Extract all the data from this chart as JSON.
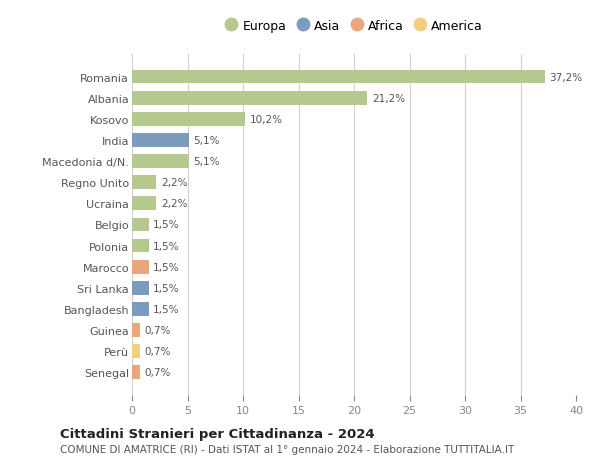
{
  "countries": [
    "Romania",
    "Albania",
    "Kosovo",
    "India",
    "Macedonia d/N.",
    "Regno Unito",
    "Ucraina",
    "Belgio",
    "Polonia",
    "Marocco",
    "Sri Lanka",
    "Bangladesh",
    "Guinea",
    "Perù",
    "Senegal"
  ],
  "values": [
    37.2,
    21.2,
    10.2,
    5.1,
    5.1,
    2.2,
    2.2,
    1.5,
    1.5,
    1.5,
    1.5,
    1.5,
    0.7,
    0.7,
    0.7
  ],
  "continents": [
    "Europa",
    "Europa",
    "Europa",
    "Asia",
    "Europa",
    "Europa",
    "Europa",
    "Europa",
    "Europa",
    "Africa",
    "Asia",
    "Asia",
    "Africa",
    "America",
    "Africa"
  ],
  "continent_colors": {
    "Europa": "#b5c98e",
    "Asia": "#7b9bbf",
    "Africa": "#e8a87c",
    "America": "#f0d080"
  },
  "legend_order": [
    "Europa",
    "Asia",
    "Africa",
    "America"
  ],
  "xlim": [
    0,
    40
  ],
  "xticks": [
    0,
    5,
    10,
    15,
    20,
    25,
    30,
    35,
    40
  ],
  "title": "Cittadini Stranieri per Cittadinanza - 2024",
  "subtitle": "COMUNE DI AMATRICE (RI) - Dati ISTAT al 1° gennaio 2024 - Elaborazione TUTTITALIA.IT",
  "bg_color": "#ffffff",
  "grid_color": "#d0d0d0",
  "bar_height": 0.65,
  "label_fontsize": 7.5,
  "ytick_fontsize": 8.0,
  "xtick_fontsize": 8.0,
  "title_fontsize": 9.5,
  "subtitle_fontsize": 7.5,
  "legend_fontsize": 9.0
}
